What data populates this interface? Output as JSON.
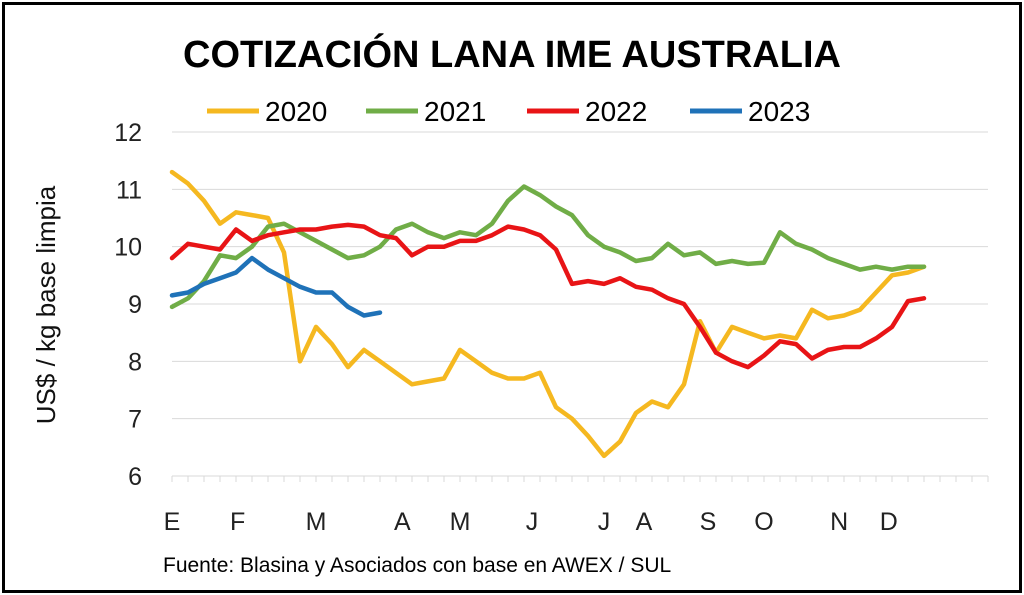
{
  "chart_data": {
    "type": "line",
    "title": "COTIZACIÓN LANA IME AUSTRALIA",
    "ylabel": "US$ / kg base limpia",
    "xlabel": "",
    "source": "Fuente: Blasina y Asociados con base en AWEX / SUL",
    "ylim": [
      6,
      12
    ],
    "yticks": [
      "6",
      "7",
      "8",
      "9",
      "10",
      "11",
      "12"
    ],
    "xlim": [
      0,
      51
    ],
    "month_labels": [
      {
        "label": "E",
        "x": 0
      },
      {
        "label": "F",
        "x": 4.1
      },
      {
        "label": "M",
        "x": 9
      },
      {
        "label": "A",
        "x": 14.4
      },
      {
        "label": "M",
        "x": 18
      },
      {
        "label": "J",
        "x": 22.5
      },
      {
        "label": "J",
        "x": 27
      },
      {
        "label": "A",
        "x": 29.5
      },
      {
        "label": "S",
        "x": 33.5
      },
      {
        "label": "O",
        "x": 37
      },
      {
        "label": "N",
        "x": 41.7
      },
      {
        "label": "D",
        "x": 44.8
      }
    ],
    "grid": true,
    "legend_position": "top",
    "series": [
      {
        "name": "2020",
        "color": "#F5B820",
        "x": [
          0,
          1,
          2,
          3,
          4,
          5,
          6,
          7,
          8,
          9,
          10,
          11,
          12,
          13,
          14,
          15,
          16,
          17,
          18,
          19,
          20,
          21,
          22,
          23,
          24,
          25,
          26,
          27,
          28,
          29,
          30,
          31,
          32,
          33,
          34,
          35,
          36,
          37,
          38,
          39,
          40,
          41,
          42,
          43,
          44,
          45,
          46,
          47
        ],
        "values": [
          11.3,
          11.1,
          10.8,
          10.4,
          10.6,
          10.55,
          10.5,
          9.9,
          8.0,
          8.6,
          8.3,
          7.9,
          8.2,
          8.0,
          7.8,
          7.6,
          7.65,
          7.7,
          8.2,
          8.0,
          7.8,
          7.7,
          7.7,
          7.8,
          7.2,
          7.0,
          6.7,
          6.35,
          6.6,
          7.1,
          7.3,
          7.2,
          7.6,
          8.7,
          8.15,
          8.6,
          8.5,
          8.4,
          8.45,
          8.4,
          8.9,
          8.75,
          8.8,
          8.9,
          9.2,
          9.5,
          9.55,
          9.65
        ]
      },
      {
        "name": "2021",
        "color": "#70AD47",
        "x": [
          0,
          1,
          2,
          3,
          4,
          5,
          6,
          7,
          8,
          9,
          10,
          11,
          12,
          13,
          14,
          15,
          16,
          17,
          18,
          19,
          20,
          21,
          22,
          23,
          24,
          25,
          26,
          27,
          28,
          29,
          30,
          31,
          32,
          33,
          34,
          35,
          36,
          37,
          38,
          39,
          40,
          41,
          42,
          43,
          44,
          45,
          46,
          47
        ],
        "values": [
          8.95,
          9.1,
          9.4,
          9.85,
          9.8,
          10.0,
          10.35,
          10.4,
          10.25,
          10.1,
          9.95,
          9.8,
          9.85,
          10.0,
          10.3,
          10.4,
          10.25,
          10.15,
          10.25,
          10.2,
          10.4,
          10.8,
          11.05,
          10.9,
          10.7,
          10.55,
          10.2,
          10.0,
          9.9,
          9.75,
          9.8,
          10.05,
          9.85,
          9.9,
          9.7,
          9.75,
          9.7,
          9.72,
          10.25,
          10.05,
          9.95,
          9.8,
          9.7,
          9.6,
          9.65,
          9.6,
          9.65,
          9.65
        ]
      },
      {
        "name": "2022",
        "color": "#E81416",
        "x": [
          0,
          1,
          2,
          3,
          4,
          5,
          6,
          7,
          8,
          9,
          10,
          11,
          12,
          13,
          14,
          15,
          16,
          17,
          18,
          19,
          20,
          21,
          22,
          23,
          24,
          25,
          26,
          27,
          28,
          29,
          30,
          31,
          32,
          33,
          34,
          35,
          36,
          37,
          38,
          39,
          40,
          41,
          42,
          43,
          44,
          45,
          46,
          47
        ],
        "values": [
          9.8,
          10.05,
          10.0,
          9.95,
          10.3,
          10.1,
          10.2,
          10.25,
          10.3,
          10.3,
          10.35,
          10.38,
          10.35,
          10.2,
          10.15,
          9.85,
          10.0,
          10.0,
          10.1,
          10.1,
          10.2,
          10.35,
          10.3,
          10.2,
          9.95,
          9.35,
          9.4,
          9.35,
          9.45,
          9.3,
          9.25,
          9.1,
          9.0,
          8.6,
          8.15,
          8.0,
          7.9,
          8.1,
          8.35,
          8.3,
          8.05,
          8.2,
          8.25,
          8.25,
          8.4,
          8.6,
          9.05,
          9.1
        ]
      },
      {
        "name": "2023",
        "color": "#1F72B8",
        "x": [
          0,
          1,
          2,
          3,
          4,
          5,
          6,
          7,
          8,
          9,
          10,
          11,
          12,
          13
        ],
        "values": [
          9.15,
          9.2,
          9.35,
          9.45,
          9.55,
          9.8,
          9.6,
          9.45,
          9.3,
          9.2,
          9.2,
          8.95,
          8.8,
          8.85
        ]
      }
    ]
  }
}
